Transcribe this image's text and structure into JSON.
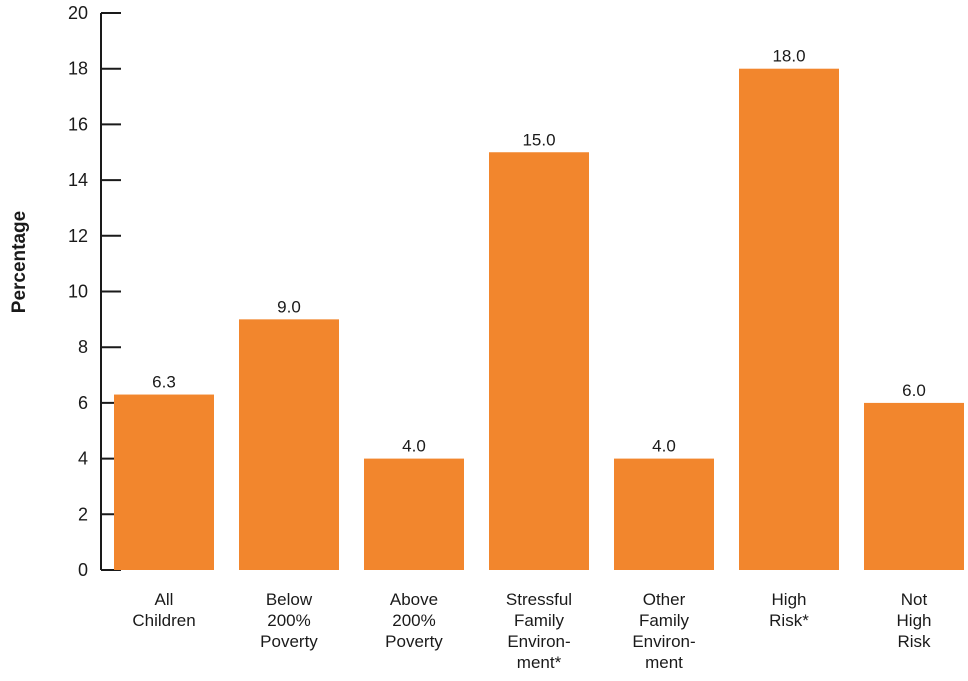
{
  "chart_data": {
    "type": "bar",
    "title": "",
    "ylabel": "Percentage",
    "xlabel": "",
    "ylim": [
      0,
      20
    ],
    "yticks": [
      0,
      2,
      4,
      6,
      8,
      10,
      12,
      14,
      16,
      18,
      20
    ],
    "bar_color": "#F2862D",
    "categories": [
      [
        "All",
        "Children"
      ],
      [
        "Below",
        "200%",
        "Poverty"
      ],
      [
        "Above",
        "200%",
        "Poverty"
      ],
      [
        "Stressful",
        "Family",
        "Environ-",
        "ment*"
      ],
      [
        "Other",
        "Family",
        "Environ-",
        "ment"
      ],
      [
        "High",
        "Risk*"
      ],
      [
        "Not",
        "High",
        "Risk"
      ]
    ],
    "values": [
      6.3,
      9.0,
      4.0,
      15.0,
      4.0,
      18.0,
      6.0
    ],
    "value_labels": [
      "6.3",
      "9.0",
      "4.0",
      "15.0",
      "4.0",
      "18.0",
      "6.0"
    ]
  }
}
